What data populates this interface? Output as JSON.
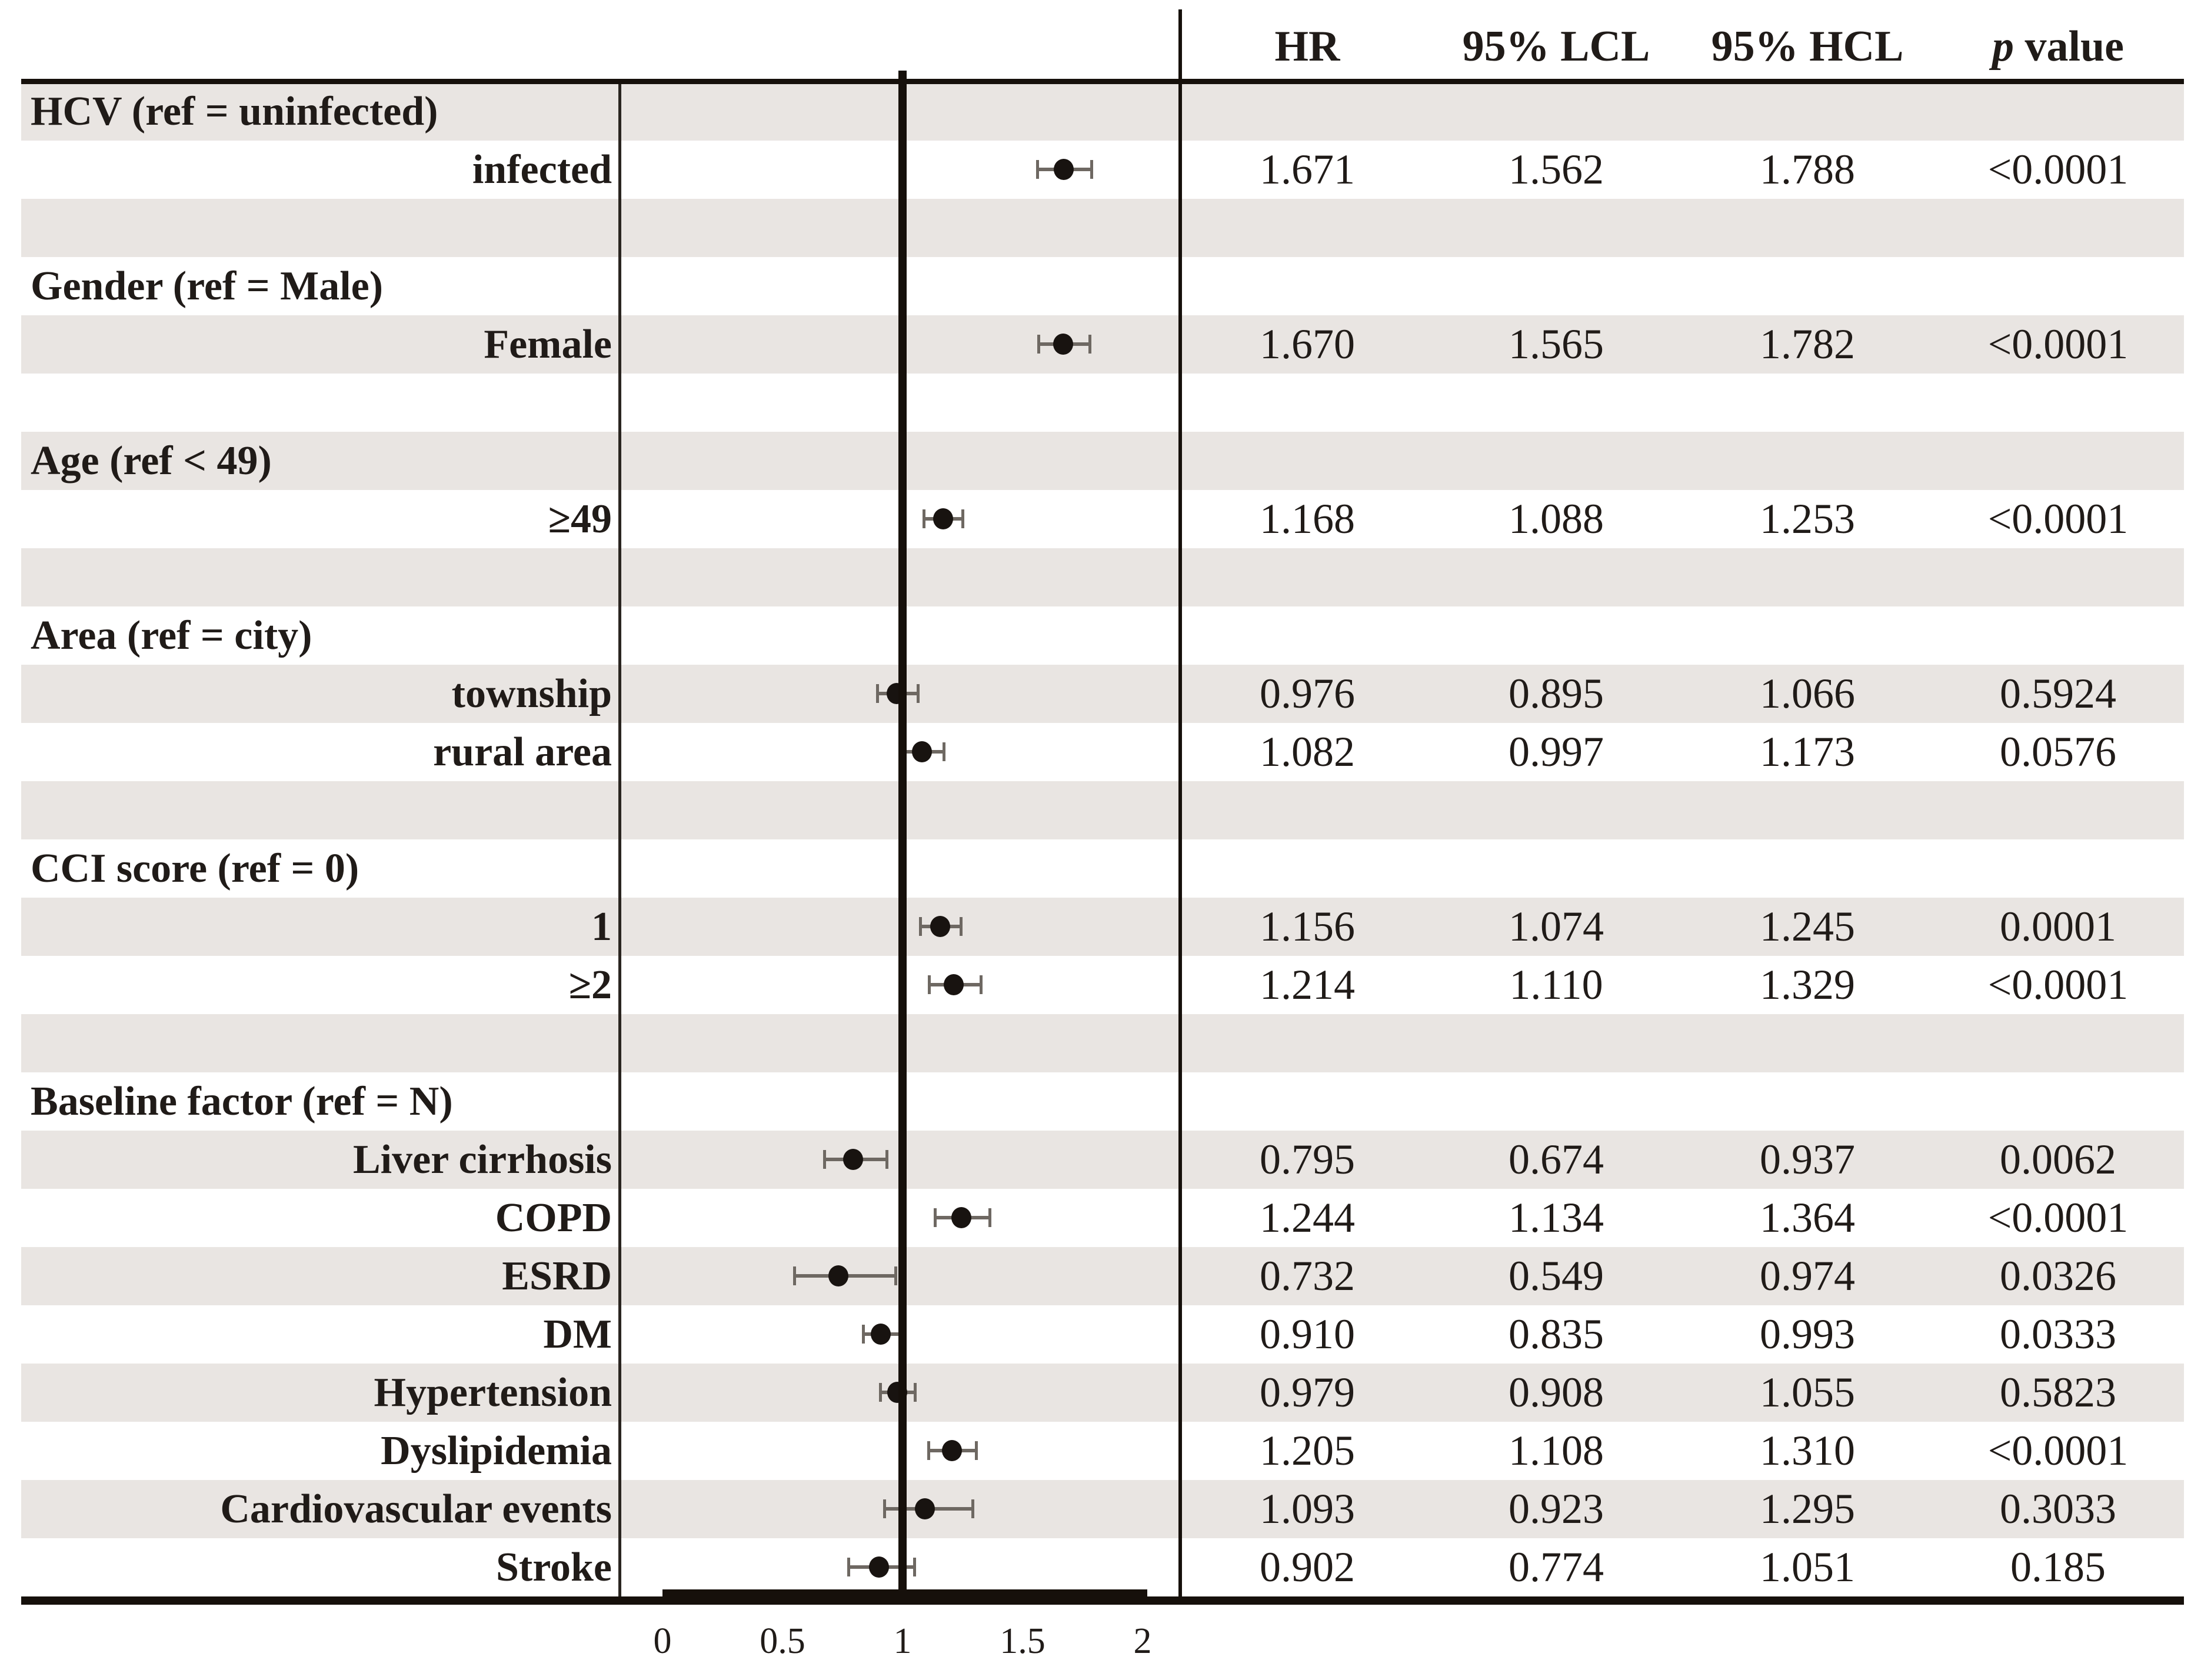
{
  "figure": {
    "kind": "forest-plot-with-table"
  },
  "header": {
    "hr": "HR",
    "lcl": "95% LCL",
    "hcl": "95% HCL",
    "p_italic": "p",
    "p_rest": " value"
  },
  "axis": {
    "tick_labels": [
      "0",
      "0.5",
      "1",
      "1.5",
      "2"
    ],
    "tick_values": [
      0,
      0.5,
      1,
      1.5,
      2
    ],
    "min": 0,
    "max": 2,
    "reference_value": 1
  },
  "colors": {
    "row_shade": "#e9e5e2",
    "text": "#201b18",
    "rule": "#16100b",
    "ci_line": "#6e6862",
    "marker": "#181310"
  },
  "chart_data": {
    "type": "forest",
    "title": "",
    "columns": [
      "HR",
      "95% LCL",
      "95% HCL",
      "p value"
    ],
    "x_axis": {
      "range": [
        0,
        2
      ],
      "ticks": [
        0,
        0.5,
        1,
        1.5,
        2
      ],
      "reference_line": 1
    },
    "rows": [
      {
        "kind": "group",
        "label": "HCV (ref = uninfected)",
        "shaded": true
      },
      {
        "kind": "item",
        "label": "infected",
        "shaded": false,
        "hr": 1.671,
        "lcl": 1.562,
        "hcl": 1.788,
        "p": "<0.0001"
      },
      {
        "kind": "blank",
        "label": "",
        "shaded": true
      },
      {
        "kind": "group",
        "label": "Gender (ref = Male)",
        "shaded": false
      },
      {
        "kind": "item",
        "label": "Female",
        "shaded": true,
        "hr": 1.67,
        "lcl": 1.565,
        "hcl": 1.782,
        "p": "<0.0001"
      },
      {
        "kind": "blank",
        "label": "",
        "shaded": false
      },
      {
        "kind": "group",
        "label": "Age (ref < 49)",
        "shaded": true
      },
      {
        "kind": "item",
        "label": "≥49",
        "shaded": false,
        "hr": 1.168,
        "lcl": 1.088,
        "hcl": 1.253,
        "p": "<0.0001"
      },
      {
        "kind": "blank",
        "label": "",
        "shaded": true
      },
      {
        "kind": "group",
        "label": "Area (ref = city)",
        "shaded": false
      },
      {
        "kind": "item",
        "label": "township",
        "shaded": true,
        "hr": 0.976,
        "lcl": 0.895,
        "hcl": 1.066,
        "p": "0.5924"
      },
      {
        "kind": "item",
        "label": "rural area",
        "shaded": false,
        "hr": 1.082,
        "lcl": 0.997,
        "hcl": 1.173,
        "p": "0.0576"
      },
      {
        "kind": "blank",
        "label": "",
        "shaded": true
      },
      {
        "kind": "group",
        "label": "CCI score (ref = 0)",
        "shaded": false
      },
      {
        "kind": "item",
        "label": "1",
        "shaded": true,
        "hr": 1.156,
        "lcl": 1.074,
        "hcl": 1.245,
        "p": "0.0001"
      },
      {
        "kind": "item",
        "label": "≥2",
        "shaded": false,
        "hr": 1.214,
        "lcl": 1.11,
        "hcl": 1.329,
        "p": "<0.0001"
      },
      {
        "kind": "blank",
        "label": "",
        "shaded": true
      },
      {
        "kind": "group",
        "label": "Baseline factor (ref = N)",
        "shaded": false
      },
      {
        "kind": "item",
        "label": "Liver cirrhosis",
        "shaded": true,
        "hr": 0.795,
        "lcl": 0.674,
        "hcl": 0.937,
        "p": "0.0062"
      },
      {
        "kind": "item",
        "label": "COPD",
        "shaded": false,
        "hr": 1.244,
        "lcl": 1.134,
        "hcl": 1.364,
        "p": "<0.0001"
      },
      {
        "kind": "item",
        "label": "ESRD",
        "shaded": true,
        "hr": 0.732,
        "lcl": 0.549,
        "hcl": 0.974,
        "p": "0.0326"
      },
      {
        "kind": "item",
        "label": "DM",
        "shaded": false,
        "hr": 0.91,
        "lcl": 0.835,
        "hcl": 0.993,
        "p": "0.0333"
      },
      {
        "kind": "item",
        "label": "Hypertension",
        "shaded": true,
        "hr": 0.979,
        "lcl": 0.908,
        "hcl": 1.055,
        "p": "0.5823"
      },
      {
        "kind": "item",
        "label": "Dyslipidemia",
        "shaded": false,
        "hr": 1.205,
        "lcl": 1.108,
        "hcl": 1.31,
        "p": "<0.0001"
      },
      {
        "kind": "item",
        "label": "Cardiovascular events",
        "shaded": true,
        "hr": 1.093,
        "lcl": 0.923,
        "hcl": 1.295,
        "p": "0.3033"
      },
      {
        "kind": "item",
        "label": "Stroke",
        "shaded": false,
        "hr": 0.902,
        "lcl": 0.774,
        "hcl": 1.051,
        "p": "0.185"
      }
    ]
  }
}
